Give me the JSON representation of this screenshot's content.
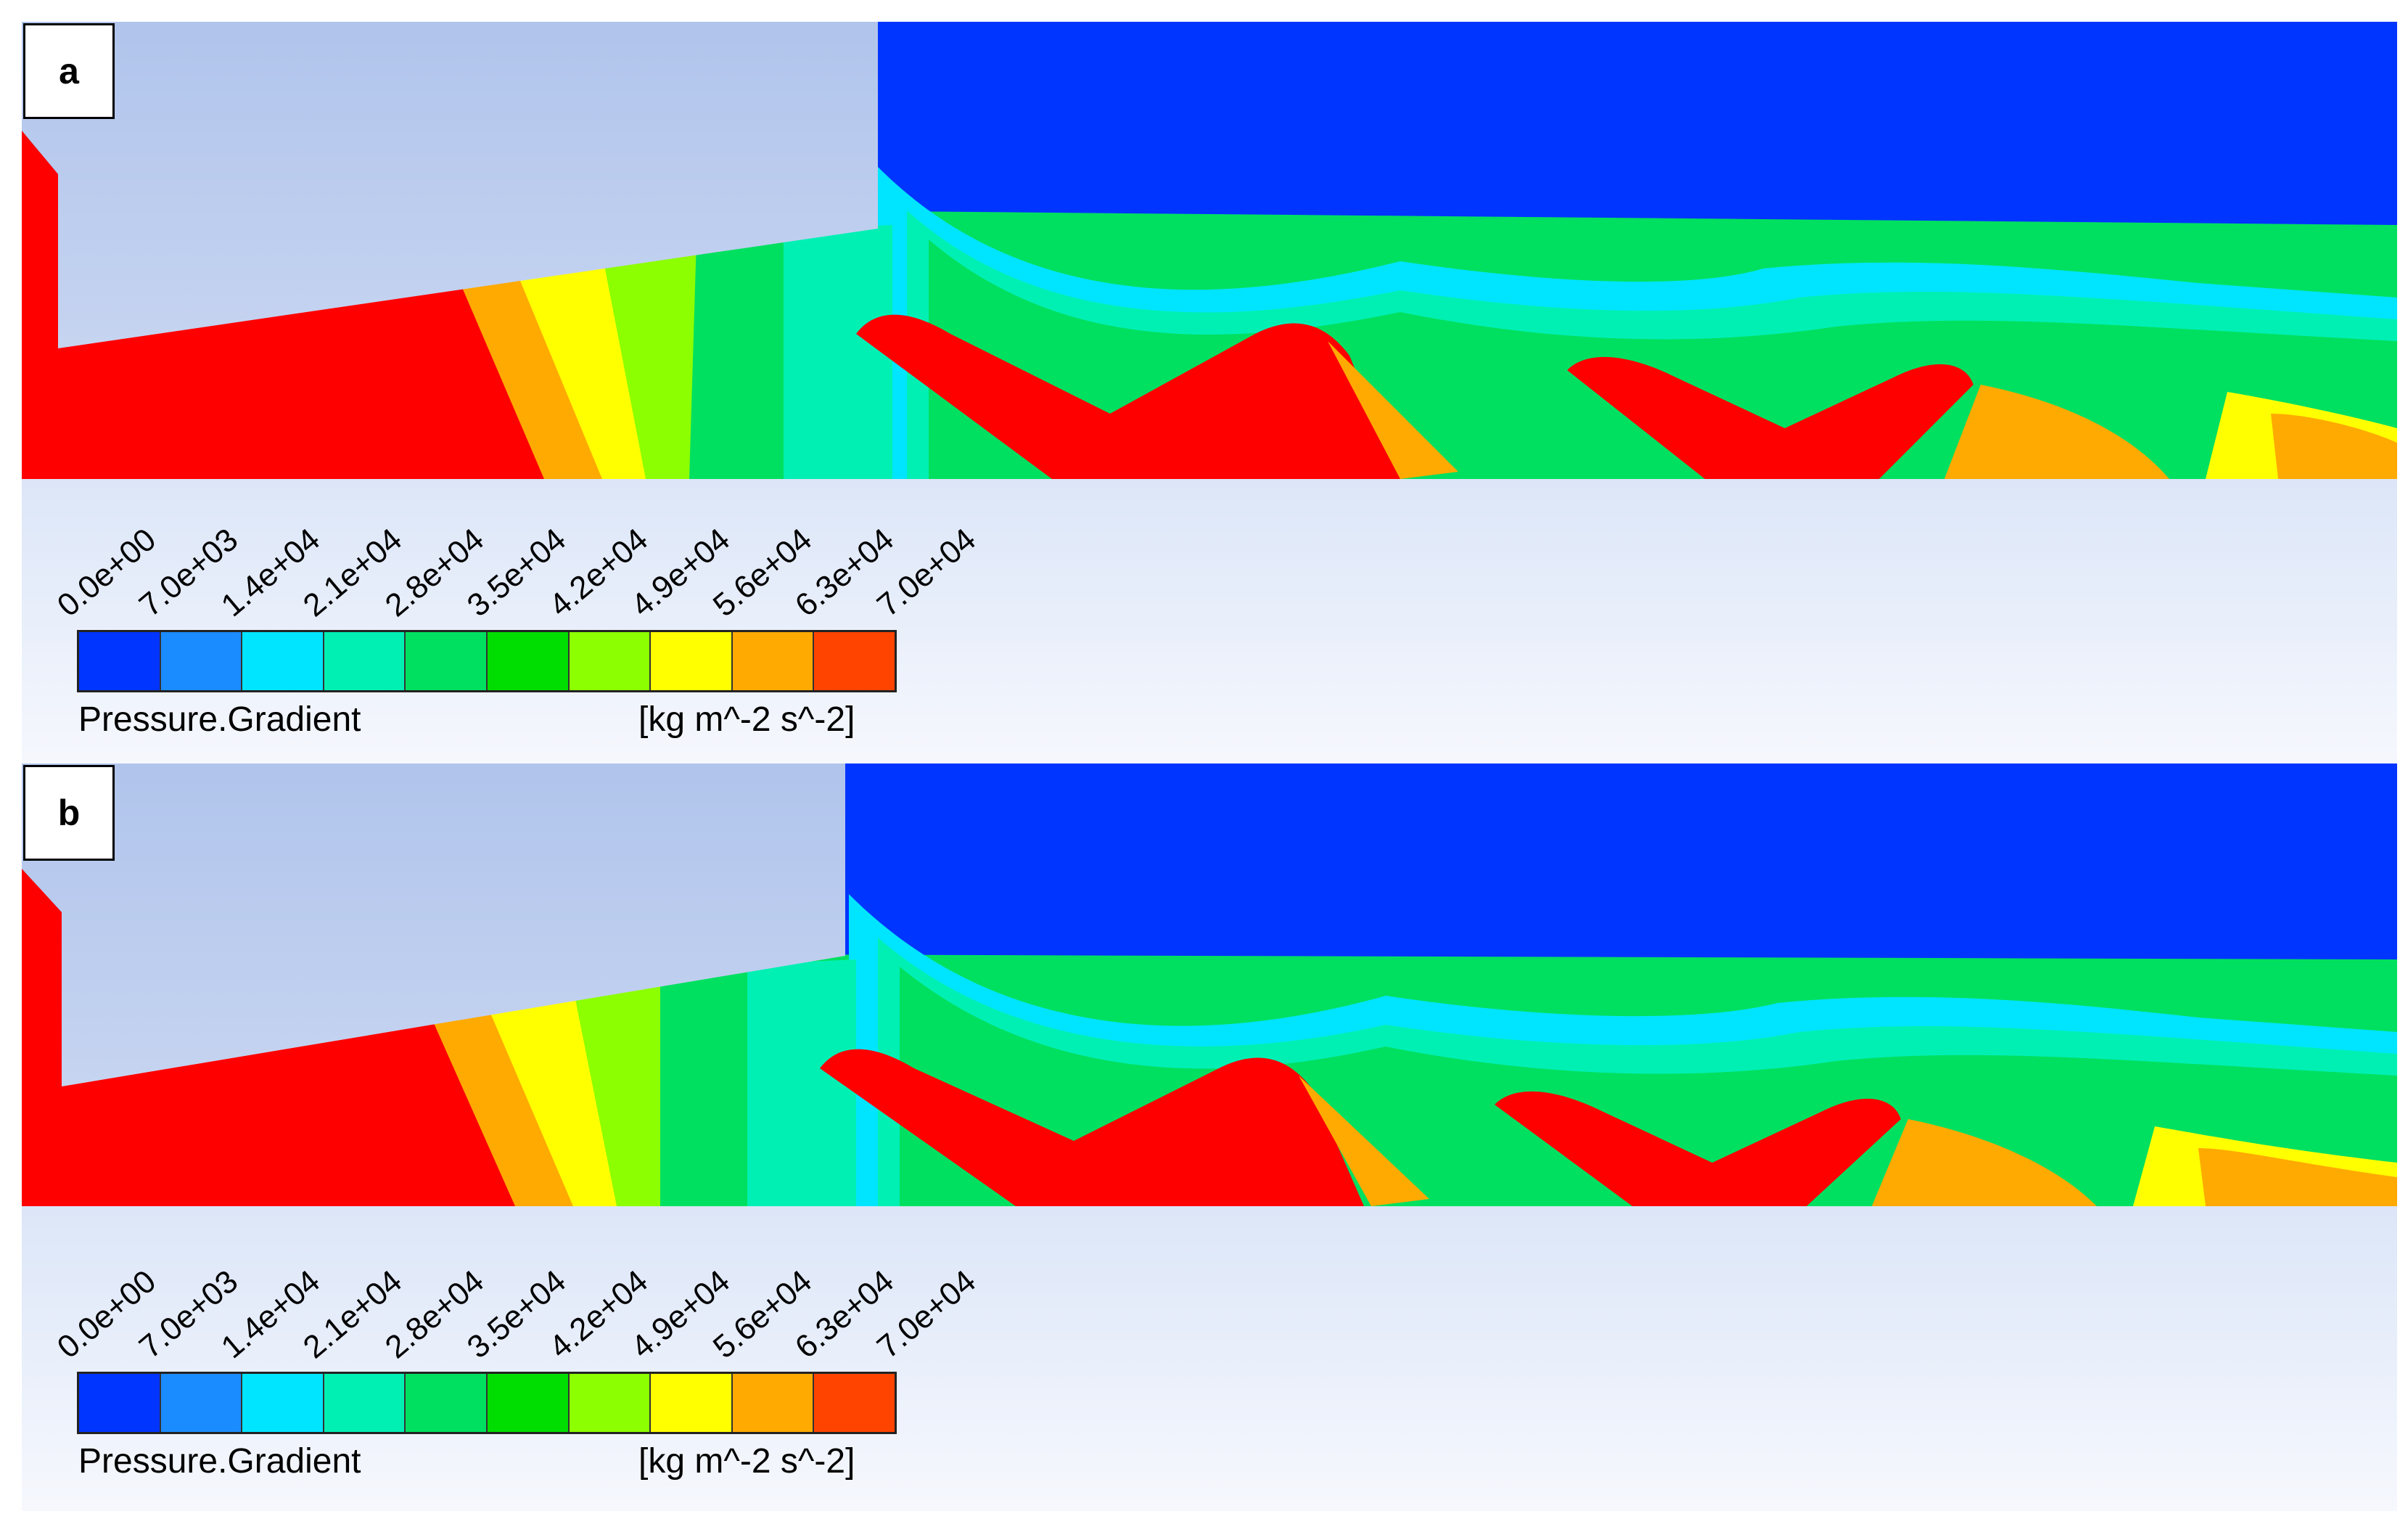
{
  "colors": {
    "bands": [
      "#0035ff",
      "#1a8cff",
      "#00e5ff",
      "#00f0b4",
      "#00e060",
      "#00dd00",
      "#8cff00",
      "#ffff00",
      "#ffaa00",
      "#ff4400",
      "#ff0000"
    ],
    "body_geometry": "#bacbed",
    "background_top": "#dce6f8",
    "background_bottom": "#f6f8fd"
  },
  "legend": {
    "title": "Pressure.Gradient",
    "units": "[kg m^-2 s^-2]",
    "ticks": [
      "0.0e+00",
      "7.0e+03",
      "1.4e+04",
      "2.1e+04",
      "2.8e+04",
      "3.5e+04",
      "4.2e+04",
      "4.9e+04",
      "5.6e+04",
      "6.3e+04",
      "7.0e+04"
    ],
    "swatches": [
      "#0035ff",
      "#1a8cff",
      "#00e5ff",
      "#00f0b4",
      "#00e060",
      "#00dd00",
      "#8cff00",
      "#ffff00",
      "#ffaa00",
      "#ff4400"
    ]
  },
  "panels": [
    {
      "id": "a",
      "label": "a"
    },
    {
      "id": "b",
      "label": "b"
    }
  ]
}
